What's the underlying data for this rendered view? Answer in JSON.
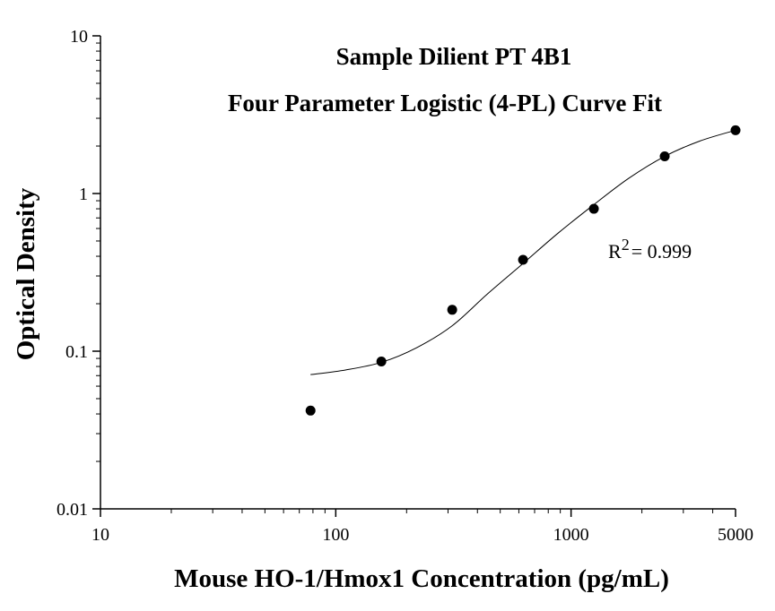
{
  "chart_data": {
    "type": "scatter",
    "title": "Sample Dilient PT 4B1",
    "subtitle": "Four Parameter Logistic (4-PL) Curve Fit",
    "xlabel": "Mouse HO-1/Hmox1 Concentration (pg/mL)",
    "ylabel": "Optical Density",
    "x_scale": "log",
    "y_scale": "log",
    "xlim": [
      10,
      5000
    ],
    "ylim": [
      0.01,
      10
    ],
    "x_ticks": [
      10,
      100,
      1000,
      5000
    ],
    "x_tick_labels": [
      "10",
      "100",
      "1000",
      "5000"
    ],
    "y_ticks": [
      0.01,
      0.1,
      1,
      10
    ],
    "y_tick_labels": [
      "0.01",
      "0.1",
      "1",
      "10"
    ],
    "grid": false,
    "annotation": {
      "prefix": "R",
      "sup": "2",
      "rest": "= 0.999"
    },
    "points": {
      "x": [
        78.13,
        156.25,
        312.5,
        625,
        1250,
        2500,
        5000
      ],
      "y": [
        0.042,
        0.086,
        0.183,
        0.38,
        0.8,
        1.72,
        2.52
      ]
    },
    "curve": {
      "x": [
        78.13,
        110,
        156.25,
        220,
        312.5,
        440,
        625,
        880,
        1250,
        1760,
        2500,
        3520,
        5000
      ],
      "y": [
        0.071,
        0.076,
        0.085,
        0.105,
        0.145,
        0.23,
        0.36,
        0.56,
        0.85,
        1.25,
        1.72,
        2.15,
        2.52
      ]
    }
  }
}
